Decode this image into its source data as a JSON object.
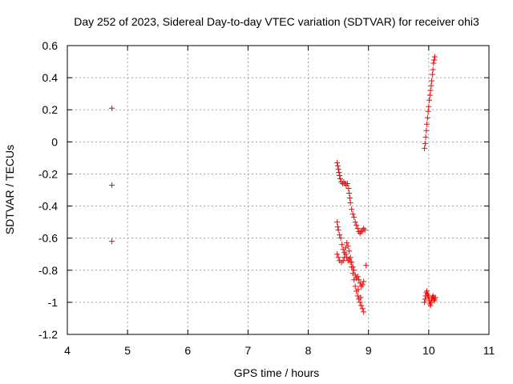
{
  "chart_data": {
    "type": "scatter",
    "title": "Day 252 of 2023, Sidereal Day-to-day VTEC variation (SDTVAR) for receiver ohi3",
    "xlabel": "GPS time / hours",
    "ylabel": "SDTVAR / TECUs",
    "xlim": [
      4,
      11
    ],
    "ylim": [
      -1.2,
      0.6
    ],
    "xticks": [
      4,
      5,
      6,
      7,
      8,
      9,
      10,
      11
    ],
    "yticks": [
      -1.2,
      -1,
      -0.8,
      -0.6,
      -0.4,
      -0.2,
      0,
      0.2,
      0.4,
      0.6
    ],
    "xtick_labels": [
      "4",
      "5",
      "6",
      "7",
      "8",
      "9",
      "10",
      "11"
    ],
    "ytick_labels": [
      "-1.2",
      "-1",
      "-0.8",
      "-0.6",
      "-0.4",
      "-0.2",
      "0",
      "0.2",
      "0.4",
      "0.6"
    ],
    "grid": true,
    "marker": "+",
    "series": [
      {
        "name": "SDTVAR",
        "color": "#ff0000",
        "points": [
          [
            4.74,
            0.21
          ],
          [
            4.74,
            -0.27
          ],
          [
            4.74,
            -0.62
          ],
          [
            8.48,
            -0.13
          ],
          [
            8.49,
            -0.15
          ],
          [
            8.5,
            -0.17
          ],
          [
            8.51,
            -0.19
          ],
          [
            8.52,
            -0.21
          ],
          [
            8.53,
            -0.23
          ],
          [
            8.55,
            -0.25
          ],
          [
            8.57,
            -0.26
          ],
          [
            8.59,
            -0.25
          ],
          [
            8.61,
            -0.26
          ],
          [
            8.63,
            -0.27
          ],
          [
            8.65,
            -0.26
          ],
          [
            8.67,
            -0.29
          ],
          [
            8.68,
            -0.32
          ],
          [
            8.69,
            -0.35
          ],
          [
            8.7,
            -0.38
          ],
          [
            8.72,
            -0.42
          ],
          [
            8.74,
            -0.45
          ],
          [
            8.76,
            -0.47
          ],
          [
            8.78,
            -0.5
          ],
          [
            8.8,
            -0.52
          ],
          [
            8.82,
            -0.54
          ],
          [
            8.84,
            -0.56
          ],
          [
            8.86,
            -0.57
          ],
          [
            8.88,
            -0.56
          ],
          [
            8.9,
            -0.55
          ],
          [
            8.92,
            -0.54
          ],
          [
            8.94,
            -0.55
          ],
          [
            8.48,
            -0.5
          ],
          [
            8.49,
            -0.53
          ],
          [
            8.5,
            -0.55
          ],
          [
            8.52,
            -0.58
          ],
          [
            8.54,
            -0.6
          ],
          [
            8.56,
            -0.64
          ],
          [
            8.58,
            -0.67
          ],
          [
            8.6,
            -0.69
          ],
          [
            8.62,
            -0.66
          ],
          [
            8.64,
            -0.63
          ],
          [
            8.66,
            -0.65
          ],
          [
            8.68,
            -0.68
          ],
          [
            8.7,
            -0.72
          ],
          [
            8.72,
            -0.75
          ],
          [
            8.74,
            -0.78
          ],
          [
            8.76,
            -0.8
          ],
          [
            8.78,
            -0.83
          ],
          [
            8.8,
            -0.85
          ],
          [
            8.82,
            -0.84
          ],
          [
            8.84,
            -0.86
          ],
          [
            8.86,
            -0.88
          ],
          [
            8.88,
            -0.9
          ],
          [
            8.9,
            -0.89
          ],
          [
            8.92,
            -0.87
          ],
          [
            8.96,
            -0.77
          ],
          [
            8.48,
            -0.7
          ],
          [
            8.5,
            -0.72
          ],
          [
            8.52,
            -0.74
          ],
          [
            8.55,
            -0.75
          ],
          [
            8.58,
            -0.74
          ],
          [
            8.6,
            -0.72
          ],
          [
            8.62,
            -0.7
          ],
          [
            8.64,
            -0.72
          ],
          [
            8.66,
            -0.74
          ],
          [
            8.68,
            -0.73
          ],
          [
            8.7,
            -0.75
          ],
          [
            8.72,
            -0.78
          ],
          [
            8.74,
            -0.82
          ],
          [
            8.76,
            -0.86
          ],
          [
            8.78,
            -0.9
          ],
          [
            8.8,
            -0.93
          ],
          [
            8.82,
            -0.96
          ],
          [
            8.84,
            -0.98
          ],
          [
            8.86,
            -1.0
          ],
          [
            8.88,
            -1.02
          ],
          [
            8.9,
            -1.04
          ],
          [
            8.92,
            -1.06
          ],
          [
            8.87,
            -0.97
          ],
          [
            8.83,
            -0.92
          ],
          [
            9.93,
            -0.04
          ],
          [
            9.94,
            -0.01
          ],
          [
            9.95,
            0.03
          ],
          [
            9.96,
            0.07
          ],
          [
            9.97,
            0.11
          ],
          [
            9.98,
            0.15
          ],
          [
            9.99,
            0.19
          ],
          [
            10.0,
            0.22
          ],
          [
            10.01,
            0.26
          ],
          [
            10.02,
            0.29
          ],
          [
            10.03,
            0.32
          ],
          [
            10.04,
            0.35
          ],
          [
            10.05,
            0.38
          ],
          [
            10.06,
            0.42
          ],
          [
            10.07,
            0.45
          ],
          [
            10.08,
            0.49
          ],
          [
            10.09,
            0.51
          ],
          [
            10.1,
            0.53
          ],
          [
            9.93,
            -1.0
          ],
          [
            9.94,
            -0.98
          ],
          [
            9.95,
            -0.96
          ],
          [
            9.96,
            -0.94
          ],
          [
            9.97,
            -0.93
          ],
          [
            9.98,
            -0.95
          ],
          [
            9.99,
            -0.96
          ],
          [
            10.0,
            -0.97
          ],
          [
            10.01,
            -0.99
          ],
          [
            10.02,
            -1.01
          ],
          [
            10.03,
            -1.02
          ],
          [
            10.04,
            -1.0
          ],
          [
            10.05,
            -0.98
          ],
          [
            10.06,
            -0.97
          ],
          [
            10.07,
            -0.96
          ],
          [
            10.08,
            -0.97
          ],
          [
            10.09,
            -0.99
          ],
          [
            10.1,
            -0.98
          ],
          [
            10.11,
            -0.97
          ]
        ]
      }
    ]
  }
}
